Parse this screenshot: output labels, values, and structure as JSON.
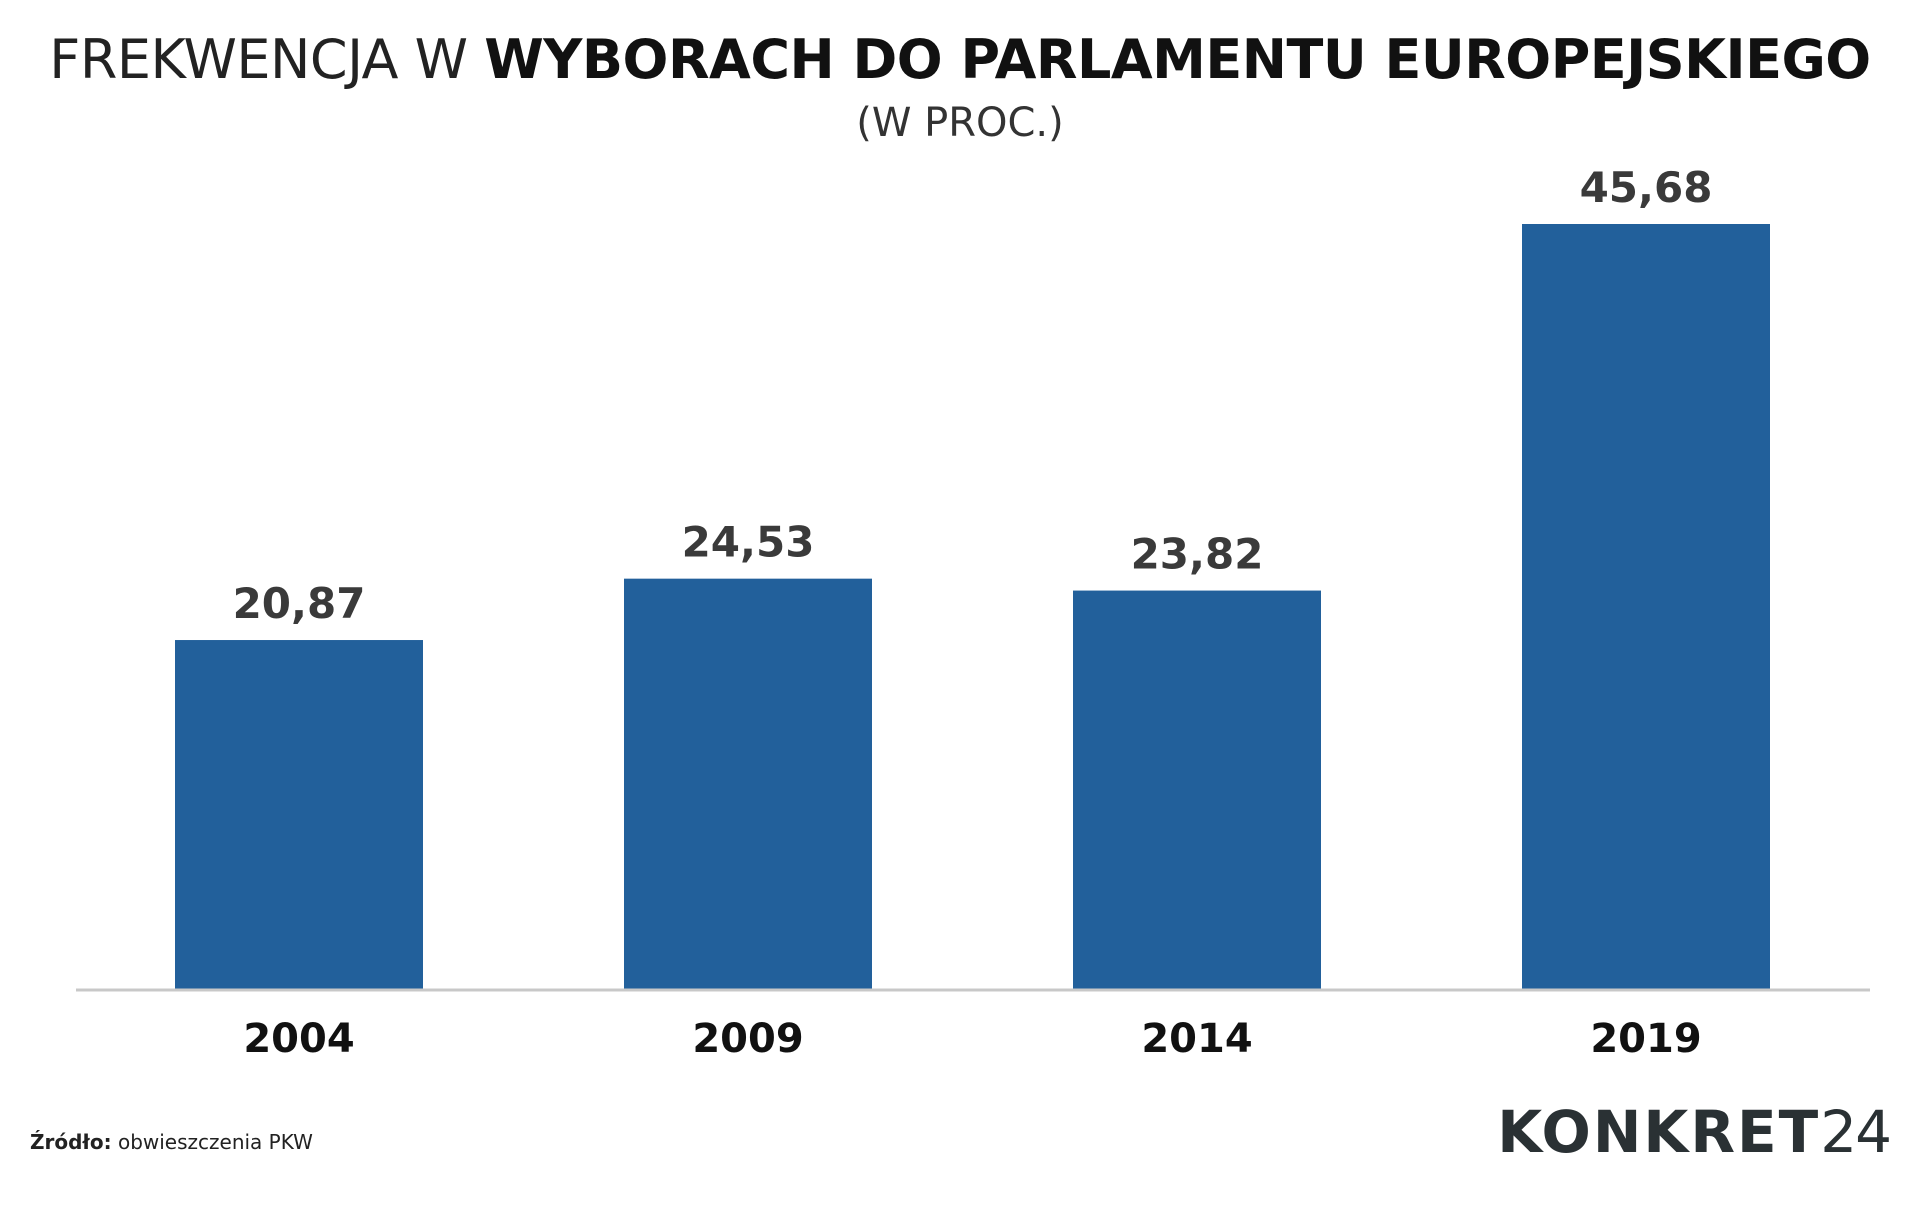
{
  "header": {
    "title_light": "FREKWENCJA W",
    "title_bold": "WYBORACH DO PARLAMENTU EUROPEJSKIEGO",
    "subtitle": "(W PROC.)"
  },
  "chart_data": {
    "type": "bar",
    "title": "FREKWENCJA W WYBORACH DO PARLAMENTU EUROPEJSKIEGO",
    "subtitle": "(W PROC.)",
    "categories": [
      "2004",
      "2009",
      "2014",
      "2019"
    ],
    "values": [
      20.87,
      24.53,
      23.82,
      45.68
    ],
    "value_labels": [
      "20,87",
      "24,53",
      "23,82",
      "45,68"
    ],
    "xlabel": "",
    "ylabel": "",
    "ylim": [
      0,
      45.68
    ],
    "grid": false,
    "bar_color": "#22609b",
    "axis_color": "#c8c8c8",
    "label_color": "#3a3a3a"
  },
  "footer": {
    "source_label": "Źródło:",
    "source_text": "obwieszczenia PKW",
    "logo_text": "KONKRET",
    "logo_number": "24"
  }
}
